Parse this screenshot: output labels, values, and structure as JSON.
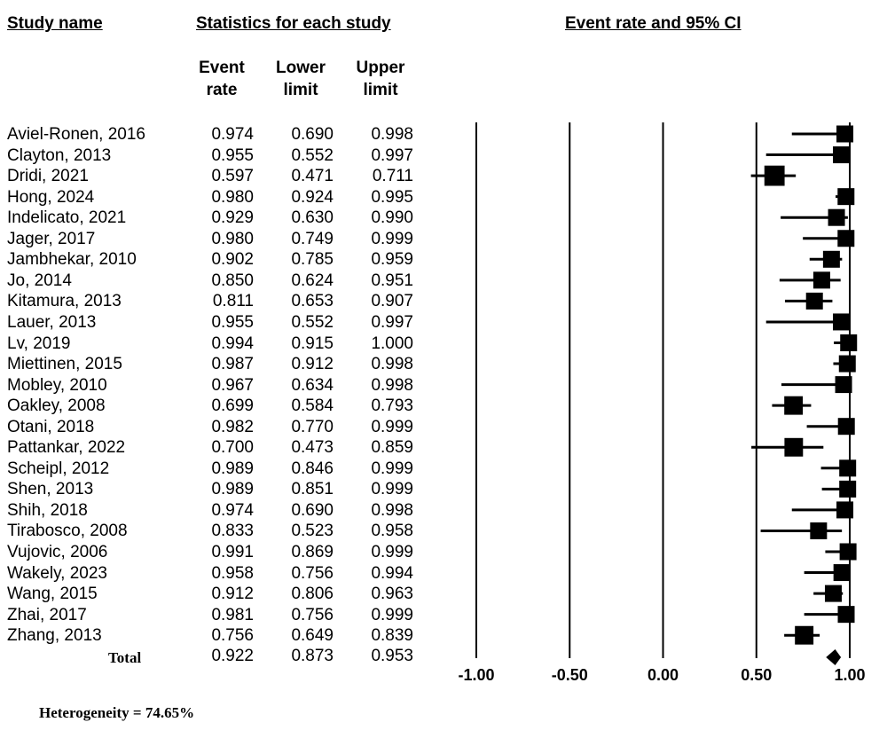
{
  "headers": {
    "study_name": "Study name",
    "statistics": "Statistics for each study",
    "plot": "Event rate and 95% CI",
    "event_rate": [
      "Event",
      "rate"
    ],
    "lower_limit": [
      "Lower",
      "limit"
    ],
    "upper_limit": [
      "Upper",
      "limit"
    ]
  },
  "total_label": "Total",
  "heterogeneity": "Heterogeneity = 74.65%",
  "chart_data": {
    "type": "forest",
    "xlim": [
      -1.0,
      1.0
    ],
    "x_ticks": [
      "-1.00",
      "-0.50",
      "0.00",
      "0.50",
      "1.00"
    ],
    "x_tick_values": [
      -1.0,
      -0.5,
      0.0,
      0.5,
      1.0
    ],
    "studies": [
      {
        "name": "Aviel-Ronen, 2016",
        "rate": "0.974",
        "lower": "0.690",
        "upper": "0.998",
        "weight": 1.0
      },
      {
        "name": "Clayton, 2013",
        "rate": "0.955",
        "lower": "0.552",
        "upper": "0.997",
        "weight": 1.0
      },
      {
        "name": "Dridi, 2021",
        "rate": "0.597",
        "lower": "0.471",
        "upper": "0.711",
        "weight": 1.2
      },
      {
        "name": "Hong, 2024",
        "rate": "0.980",
        "lower": "0.924",
        "upper": "0.995",
        "weight": 1.0
      },
      {
        "name": "Indelicato, 2021",
        "rate": "0.929",
        "lower": "0.630",
        "upper": "0.990",
        "weight": 1.0
      },
      {
        "name": "Jager, 2017",
        "rate": "0.980",
        "lower": "0.749",
        "upper": "0.999",
        "weight": 1.0
      },
      {
        "name": "Jambhekar, 2010",
        "rate": "0.902",
        "lower": "0.785",
        "upper": "0.959",
        "weight": 1.0
      },
      {
        "name": "Jo, 2014",
        "rate": "0.850",
        "lower": "0.624",
        "upper": "0.951",
        "weight": 1.0
      },
      {
        "name": "Kitamura, 2013",
        "rate": "0.811",
        "lower": "0.653",
        "upper": "0.907",
        "weight": 1.0
      },
      {
        "name": "Lauer, 2013",
        "rate": "0.955",
        "lower": "0.552",
        "upper": "0.997",
        "weight": 1.0
      },
      {
        "name": "Lv, 2019",
        "rate": "0.994",
        "lower": "0.915",
        "upper": "1.000",
        "weight": 1.0
      },
      {
        "name": "Miettinen, 2015",
        "rate": "0.987",
        "lower": "0.912",
        "upper": "0.998",
        "weight": 1.0
      },
      {
        "name": "Mobley, 2010",
        "rate": "0.967",
        "lower": "0.634",
        "upper": "0.998",
        "weight": 1.0
      },
      {
        "name": "Oakley, 2008",
        "rate": "0.699",
        "lower": "0.584",
        "upper": "0.793",
        "weight": 1.1
      },
      {
        "name": "Otani, 2018",
        "rate": "0.982",
        "lower": "0.770",
        "upper": "0.999",
        "weight": 1.0
      },
      {
        "name": "Pattankar, 2022",
        "rate": "0.700",
        "lower": "0.473",
        "upper": "0.859",
        "weight": 1.1
      },
      {
        "name": "Scheipl, 2012",
        "rate": "0.989",
        "lower": "0.846",
        "upper": "0.999",
        "weight": 1.0
      },
      {
        "name": "Shen, 2013",
        "rate": "0.989",
        "lower": "0.851",
        "upper": "0.999",
        "weight": 1.0
      },
      {
        "name": "Shih, 2018",
        "rate": "0.974",
        "lower": "0.690",
        "upper": "0.998",
        "weight": 1.0
      },
      {
        "name": "Tirabosco, 2008",
        "rate": "0.833",
        "lower": "0.523",
        "upper": "0.958",
        "weight": 1.0
      },
      {
        "name": "Vujovic, 2006",
        "rate": "0.991",
        "lower": "0.869",
        "upper": "0.999",
        "weight": 1.0
      },
      {
        "name": "Wakely, 2023",
        "rate": "0.958",
        "lower": "0.756",
        "upper": "0.994",
        "weight": 1.0
      },
      {
        "name": "Wang, 2015",
        "rate": "0.912",
        "lower": "0.806",
        "upper": "0.963",
        "weight": 1.0
      },
      {
        "name": "Zhai, 2017",
        "rate": "0.981",
        "lower": "0.756",
        "upper": "0.999",
        "weight": 1.0
      },
      {
        "name": "Zhang, 2013",
        "rate": "0.756",
        "lower": "0.649",
        "upper": "0.839",
        "weight": 1.1
      }
    ],
    "total": {
      "rate": "0.922",
      "lower": "0.873",
      "upper": "0.953"
    }
  }
}
